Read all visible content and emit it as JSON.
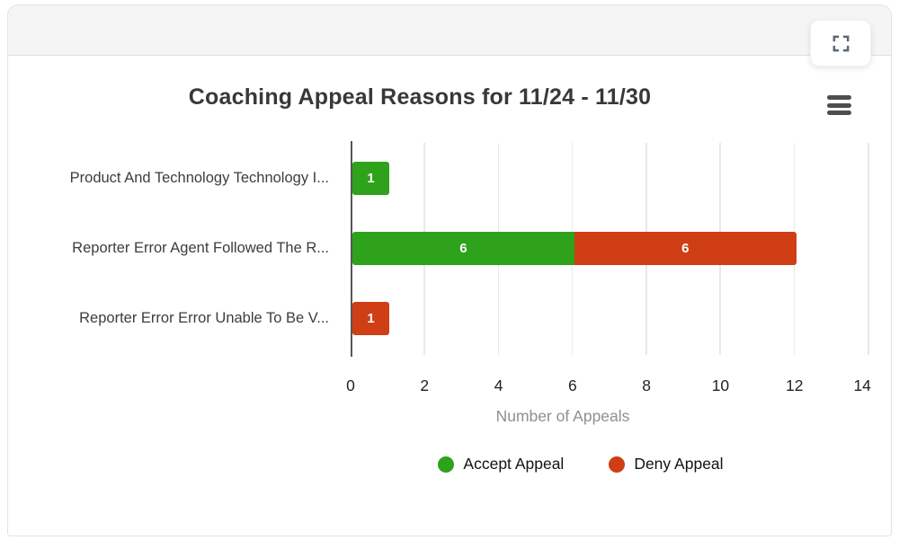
{
  "controls": {
    "fullscreen_icon": "fullscreen-expand-icon",
    "menu_icon": "hamburger-menu-icon"
  },
  "colors": {
    "accept": "#2ea21b",
    "deny": "#cf3e14",
    "header_bg": "#f5f5f5",
    "axis_line": "#565656",
    "gridline": "#e8e8e8"
  },
  "chart_data": {
    "type": "bar",
    "orientation": "horizontal",
    "stacked": true,
    "title": "Coaching Appeal Reasons for 11/24 - 11/30",
    "categories": [
      "Product And Technology Technology I...",
      "Reporter Error Agent Followed The R...",
      "Reporter Error Error Unable To Be V..."
    ],
    "series": [
      {
        "name": "Accept Appeal",
        "color": "#2ea21b",
        "values": [
          1,
          6,
          0
        ]
      },
      {
        "name": "Deny Appeal",
        "color": "#cf3e14",
        "values": [
          0,
          6,
          1
        ]
      }
    ],
    "data_labels": [
      "1",
      "6",
      "6",
      "1"
    ],
    "xlabel": "Number of Appeals",
    "xlim": [
      0,
      14
    ],
    "xticks": [
      0,
      2,
      4,
      6,
      8,
      10,
      12,
      14
    ],
    "grid": true,
    "legend_position": "bottom"
  }
}
